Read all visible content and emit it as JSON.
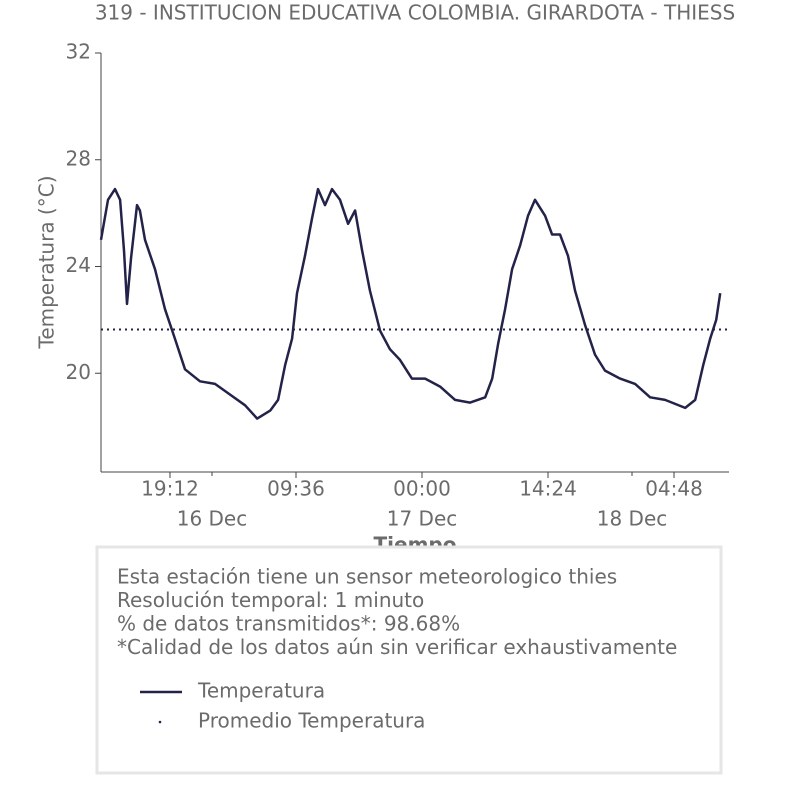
{
  "chart_data": {
    "type": "line",
    "title": "319 - INSTITUCION EDUCATIVA COLOMBIA. GIRARDOTA - THIESS",
    "y_label": "Temperatura (°C)",
    "x_label": "Tiempo",
    "xlim": [
      "Dec 15 11:19",
      "Dec 18 11:05"
    ],
    "xticks": [
      {
        "value": "Dec 15 19:12",
        "label": "19:12"
      },
      {
        "value": "Dec 16 09:36",
        "label": "09:36"
      },
      {
        "value": "Dec 17 00:00",
        "label": "00:00"
      },
      {
        "value": "Dec 17 14:24",
        "label": "14:24"
      },
      {
        "value": "Dec 18 04:48",
        "label": "04:48"
      }
    ],
    "date_ticks": [
      {
        "value": "Dec 16 00:00",
        "label": "16 Dec"
      },
      {
        "value": "Dec 17 00:00",
        "label": "17 Dec"
      },
      {
        "value": "Dec 18 00:00",
        "label": "18 Dec"
      }
    ],
    "ylim": [
      16.3,
      32
    ],
    "yticks": [
      20,
      24,
      28,
      32
    ],
    "x": [
      "Dec 15 11:19",
      "Dec 15 12:07",
      "Dec 15 12:55",
      "Dec 15 13:30",
      "Dec 15 13:57",
      "Dec 15 14:17",
      "Dec 15 14:45",
      "Dec 15 15:26",
      "Dec 15 15:46",
      "Dec 15 16:21",
      "Dec 15 17:29",
      "Dec 15 18:38",
      "Dec 15 19:46",
      "Dec 15 20:55",
      "Dec 15 22:38",
      "Dec 16 00:21",
      "Dec 16 02:04",
      "Dec 16 03:47",
      "Dec 16 05:10",
      "Dec 16 06:39",
      "Dec 16 07:33",
      "Dec 16 08:21",
      "Dec 16 09:09",
      "Dec 16 09:43",
      "Dec 16 10:38",
      "Dec 16 11:26",
      "Dec 16 12:07",
      "Dec 16 12:55",
      "Dec 16 13:43",
      "Dec 16 14:38",
      "Dec 16 15:33",
      "Dec 16 16:21",
      "Dec 16 17:09",
      "Dec 16 18:03",
      "Dec 16 19:12",
      "Dec 16 20:20",
      "Dec 16 21:29",
      "Dec 16 22:51",
      "Dec 17 00:21",
      "Dec 17 02:04",
      "Dec 17 03:47",
      "Dec 17 05:30",
      "Dec 17 07:13",
      "Dec 17 08:01",
      "Dec 17 08:42",
      "Dec 17 09:30",
      "Dec 17 10:18",
      "Dec 17 11:13",
      "Dec 17 12:07",
      "Dec 17 12:55",
      "Dec 17 14:04",
      "Dec 17 14:52",
      "Dec 17 15:46",
      "Dec 17 16:41",
      "Dec 17 17:29",
      "Dec 17 18:38",
      "Dec 17 19:46",
      "Dec 17 20:55",
      "Dec 17 22:38",
      "Dec 18 00:21",
      "Dec 18 02:04",
      "Dec 18 03:47",
      "Dec 18 06:05",
      "Dec 18 07:13",
      "Dec 18 08:08",
      "Dec 18 08:56",
      "Dec 18 09:37",
      "Dec 18 10:05"
    ],
    "series": [
      {
        "name": "Temperatura",
        "color": "#23234a",
        "values": [
          25.0,
          26.5,
          26.9,
          26.5,
          24.6,
          22.6,
          24.3,
          26.3,
          26.1,
          25.0,
          23.9,
          22.4,
          21.3,
          20.15,
          19.7,
          19.6,
          19.2,
          18.8,
          18.3,
          18.6,
          19.0,
          20.3,
          21.3,
          23.0,
          24.4,
          25.8,
          26.9,
          26.3,
          26.9,
          26.5,
          25.6,
          26.1,
          24.6,
          23.1,
          21.6,
          20.9,
          20.5,
          19.8,
          19.8,
          19.5,
          19.0,
          18.9,
          19.1,
          19.8,
          21.1,
          22.4,
          23.9,
          24.8,
          25.9,
          26.5,
          25.9,
          25.2,
          25.2,
          24.4,
          23.1,
          21.8,
          20.7,
          20.1,
          19.8,
          19.6,
          19.1,
          19.0,
          18.7,
          19.0,
          20.3,
          21.3,
          22.0,
          23.0
        ]
      }
    ],
    "mean": {
      "name": "Promedio Temperatura",
      "value": 21.64,
      "color": "#23234a"
    },
    "notes": [
      "Esta estación tiene un sensor meteorologico thies",
      "Resolución temporal: 1 minuto",
      "% de datos transmitidos*: 98.68%",
      "*Calidad de los datos aún sin verificar exhaustivamente"
    ]
  }
}
